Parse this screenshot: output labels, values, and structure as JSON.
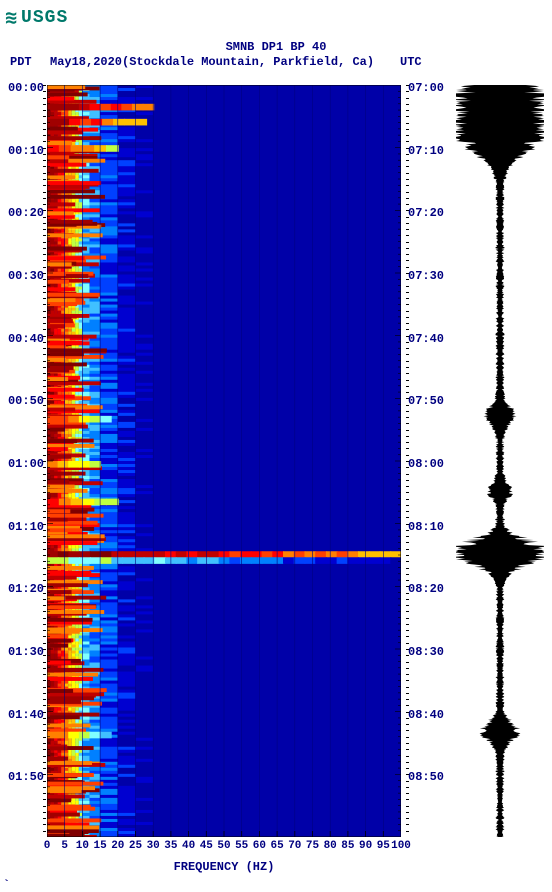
{
  "logo": {
    "text": "USGS"
  },
  "header": {
    "title": "SMNB DP1 BP 40",
    "date": "May18,2020",
    "location": "(Stockdale Mountain, Parkfield, Ca)",
    "tz_left": "PDT",
    "tz_right": "UTC"
  },
  "axes": {
    "x_label": "FREQUENCY (HZ)",
    "x_ticks": [
      0,
      5,
      10,
      15,
      20,
      25,
      30,
      35,
      40,
      45,
      50,
      55,
      60,
      65,
      70,
      75,
      80,
      85,
      90,
      95,
      100
    ],
    "x_min": 0,
    "x_max": 100,
    "y_left_ticks": [
      "00:00",
      "00:10",
      "00:20",
      "00:30",
      "00:40",
      "00:50",
      "01:00",
      "01:10",
      "01:20",
      "01:30",
      "01:40",
      "01:50"
    ],
    "y_right_ticks": [
      "07:00",
      "07:10",
      "07:20",
      "07:30",
      "07:40",
      "07:50",
      "08:00",
      "08:10",
      "08:20",
      "08:30",
      "08:40",
      "08:50"
    ],
    "y_positions_pct": [
      0.417,
      8.75,
      17.08,
      25.42,
      33.75,
      42.08,
      50.42,
      58.75,
      67.08,
      75.42,
      83.75,
      92.08
    ]
  },
  "colorscale": [
    "#800000",
    "#a00000",
    "#c00000",
    "#ff0000",
    "#ff4000",
    "#ff8000",
    "#ffc000",
    "#ffff00",
    "#c0ff40",
    "#80ffff",
    "#40c0ff",
    "#0080ff",
    "#0040ff",
    "#0000d0",
    "#0000a8"
  ],
  "spectrogram": {
    "grid_lines_x": [
      5,
      10,
      15,
      20,
      25,
      30,
      35,
      40,
      45,
      50,
      55,
      60,
      65,
      70,
      75,
      80,
      85,
      90,
      95
    ],
    "freq_profile": [
      {
        "f": 0,
        "c": 0
      },
      {
        "f": 1,
        "c": 1
      },
      {
        "f": 2,
        "c": 2
      },
      {
        "f": 3,
        "c": 3
      },
      {
        "f": 4,
        "c": 4
      },
      {
        "f": 5,
        "c": 5
      },
      {
        "f": 6,
        "c": 6
      },
      {
        "f": 7,
        "c": 7
      },
      {
        "f": 8,
        "c": 8
      },
      {
        "f": 9,
        "c": 9
      },
      {
        "f": 10,
        "c": 10
      },
      {
        "f": 12,
        "c": 11
      },
      {
        "f": 15,
        "c": 12
      },
      {
        "f": 20,
        "c": 13
      },
      {
        "f": 25,
        "c": 14
      }
    ],
    "transients": [
      {
        "t_pct": 2.5,
        "extent": 30,
        "intensity": 0
      },
      {
        "t_pct": 4.5,
        "extent": 28,
        "intensity": 1
      },
      {
        "t_pct": 8.0,
        "extent": 20,
        "intensity": 2
      },
      {
        "t_pct": 44.0,
        "extent": 18,
        "intensity": 3
      },
      {
        "t_pct": 50.0,
        "extent": 15,
        "intensity": 4
      },
      {
        "t_pct": 55.0,
        "extent": 20,
        "intensity": 3
      },
      {
        "t_pct": 62.0,
        "extent": 100,
        "intensity": 0
      },
      {
        "t_pct": 62.8,
        "extent": 100,
        "intensity": 8
      },
      {
        "t_pct": 86.0,
        "extent": 18,
        "intensity": 4
      }
    ],
    "background_bursts": 260
  },
  "waveform": {
    "baseline_amp": 3,
    "events": [
      {
        "t_pct": 3.5,
        "amp": 45,
        "dur": 3.5
      },
      {
        "t_pct": 8.0,
        "amp": 12,
        "dur": 1.5
      },
      {
        "t_pct": 44.0,
        "amp": 10,
        "dur": 1.2
      },
      {
        "t_pct": 54.0,
        "amp": 8,
        "dur": 1.0
      },
      {
        "t_pct": 62.2,
        "amp": 42,
        "dur": 1.5
      },
      {
        "t_pct": 86.0,
        "amp": 14,
        "dur": 1.2
      }
    ],
    "n_points": 900
  },
  "colors": {
    "text": "#000080",
    "logo": "#00796b",
    "waveform": "#000000",
    "bg": "#ffffff",
    "grid": "#000080"
  },
  "corner": "`"
}
